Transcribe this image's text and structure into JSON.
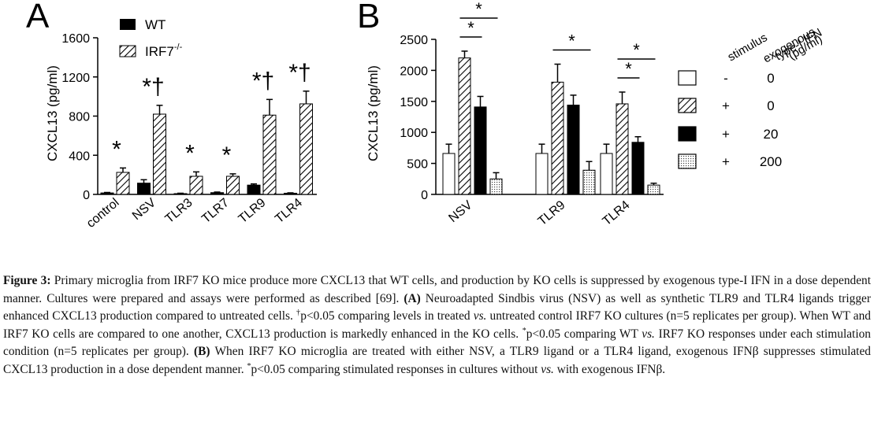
{
  "chart_data": [
    {
      "panel_label": "A",
      "type": "bar",
      "ylabel": "CXCL13 (pg/ml)",
      "ylim": [
        0,
        1600
      ],
      "yticks": [
        "0",
        "400",
        "800",
        "1200",
        "1600"
      ],
      "categories": [
        "control",
        "NSV",
        "TLR3",
        "TLR7",
        "TLR9",
        "TLR4"
      ],
      "series": [
        {
          "name": "WT",
          "fill": "solid",
          "values": [
            15,
            115,
            8,
            18,
            95,
            12
          ],
          "errors": [
            5,
            35,
            4,
            6,
            12,
            4
          ]
        },
        {
          "name": "IRF7",
          "name_sup": "-/-",
          "fill": "hatch",
          "values": [
            225,
            820,
            185,
            185,
            810,
            925
          ],
          "errors": [
            45,
            90,
            45,
            25,
            160,
            130
          ]
        }
      ],
      "annotations": [
        "*",
        "*†",
        "*",
        "*",
        "*†",
        "*†"
      ]
    },
    {
      "panel_label": "B",
      "type": "bar",
      "ylabel": "CXCL13 (pg/ml)",
      "ylim": [
        0,
        2500
      ],
      "yticks": [
        "0",
        "500",
        "1000",
        "1500",
        "2000",
        "2500"
      ],
      "categories": [
        "NSV",
        "TLR9",
        "TLR4"
      ],
      "legend_headers": [
        "stimulus",
        "exogenous type-I IFN (pg/ml)"
      ],
      "legend_header_lines": [
        "stimulus",
        "exogenous",
        "type-I IFN",
        "(pg/ml)"
      ],
      "series": [
        {
          "stimulus": "-",
          "ifn": "0",
          "fill": "white",
          "values": [
            660,
            660,
            660
          ],
          "errors": [
            150,
            150,
            150
          ]
        },
        {
          "stimulus": "+",
          "ifn": "0",
          "fill": "hatch",
          "values": [
            2200,
            1810,
            1460
          ],
          "errors": [
            110,
            290,
            190
          ]
        },
        {
          "stimulus": "+",
          "ifn": "20",
          "fill": "solid",
          "values": [
            1410,
            1440,
            840
          ],
          "errors": [
            170,
            160,
            90
          ]
        },
        {
          "stimulus": "+",
          "ifn": "200",
          "fill": "dots",
          "values": [
            250,
            390,
            150
          ],
          "errors": [
            100,
            140,
            30
          ]
        }
      ],
      "significance": "*"
    }
  ],
  "caption": {
    "figure_label": "Figure 3:",
    "intro": "Primary microglia from IRF7 KO mice produce more CXCL13 that WT cells, and production by KO cells is suppressed by exogenous type-I IFN in a dose dependent manner. Cultures were prepared and assays were performed as described [69].",
    "a_label": "(A)",
    "a_text_1": "Neuroadapted Sindbis virus (NSV) as well as synthetic TLR9 and TLR4 ligands trigger enhanced CXCL13 production compared to untreated cells.",
    "dagger": "†",
    "a_text_2": "p<0.05 comparing levels in treated",
    "vs": "vs.",
    "a_text_3": "untreated control IRF7 KO cultures (n=5 replicates per group). When WT and IRF7 KO cells are compared to one another, CXCL13 production is markedly enhanced in the KO cells.",
    "star": "*",
    "a_text_4": "p<0.05 comparing WT",
    "a_text_5": "IRF7 KO responses under each stimulation condition (n=5 replicates per group).",
    "b_label": "(B)",
    "b_text_1": "When IRF7 KO microglia are treated with either NSV, a TLR9 ligand or a TLR4 ligand, exogenous IFNβ suppresses stimulated CXCL13 production in a dose dependent manner.",
    "b_text_2": "p<0.05 comparing stimulated responses in cultures without",
    "b_text_3": "with exogenous IFNβ."
  }
}
